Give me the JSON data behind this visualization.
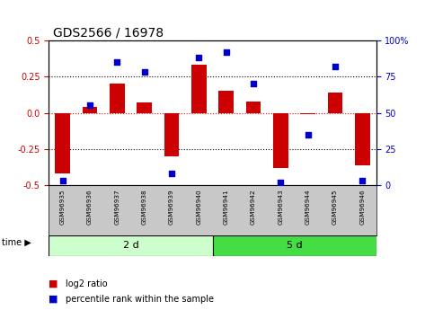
{
  "title": "GDS2566 / 16978",
  "samples": [
    "GSM96935",
    "GSM96936",
    "GSM96937",
    "GSM96938",
    "GSM96939",
    "GSM96940",
    "GSM96941",
    "GSM96942",
    "GSM96943",
    "GSM96944",
    "GSM96945",
    "GSM96946"
  ],
  "log2_ratio": [
    -0.42,
    0.04,
    0.2,
    0.07,
    -0.3,
    0.33,
    0.15,
    0.08,
    -0.38,
    -0.01,
    0.14,
    -0.36
  ],
  "percentile_rank": [
    3,
    55,
    85,
    78,
    8,
    88,
    92,
    70,
    2,
    35,
    82,
    3
  ],
  "group_labels": [
    "2 d",
    "5 d"
  ],
  "group_sizes": [
    6,
    6
  ],
  "bar_color": "#cc0000",
  "dot_color": "#0000cc",
  "group1_color": "#ccffcc",
  "group2_color": "#44dd44",
  "sample_bg_color": "#c8c8c8",
  "ylim_left": [
    -0.5,
    0.5
  ],
  "ylim_right": [
    0,
    100
  ],
  "yticks_left": [
    -0.5,
    -0.25,
    0.0,
    0.25,
    0.5
  ],
  "yticks_right": [
    0,
    25,
    50,
    75,
    100
  ],
  "title_fontsize": 10,
  "tick_fontsize": 7,
  "bar_width": 0.55
}
